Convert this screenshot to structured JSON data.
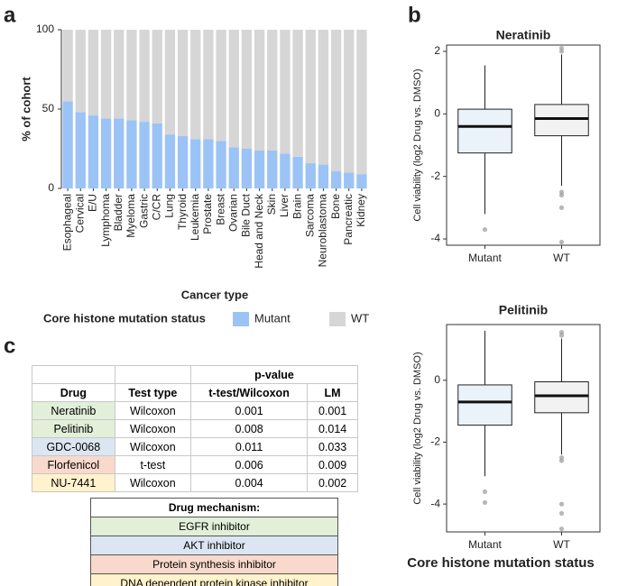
{
  "panel_labels": [
    "a",
    "b",
    "c"
  ],
  "chart_data": [
    {
      "type": "stacked-bar",
      "xlabel": "Cancer type",
      "ylabel": "% of cohort",
      "categories": [
        "Esophageal",
        "Cervical",
        "E/U",
        "Lymphoma",
        "Bladder",
        "Myeloma",
        "Gastric",
        "C/CR",
        "Lung",
        "Thyroid",
        "Leukemia",
        "Prostate",
        "Breast",
        "Ovarian",
        "Bile Duct",
        "Head and Neck",
        "Skin",
        "Liver",
        "Brain",
        "Sarcoma",
        "Neuroblastoma",
        "Bone",
        "Pancreatic",
        "Kidney"
      ],
      "series": [
        {
          "name": "Mutant",
          "color": "#9cc3f5",
          "values": [
            55,
            48,
            46,
            44,
            44,
            43,
            42,
            41,
            34,
            33,
            31,
            31,
            30,
            26,
            25,
            24,
            24,
            22,
            20,
            16,
            15,
            11,
            10,
            9
          ]
        },
        {
          "name": "WT",
          "color": "#d6d6d6",
          "values": [
            45,
            52,
            54,
            56,
            56,
            57,
            58,
            59,
            66,
            67,
            69,
            69,
            70,
            74,
            75,
            76,
            76,
            78,
            80,
            84,
            85,
            89,
            90,
            91
          ]
        }
      ],
      "legend_title": "Core histone mutation status",
      "ylim": [
        0,
        100
      ],
      "yticks": [
        0,
        50,
        100
      ]
    },
    {
      "type": "box",
      "title": "Neratinib",
      "ylabel": "Cell viability (log2 Drug vs. DMSO)",
      "categories": [
        "Mutant",
        "WT"
      ],
      "colors": [
        "#eaf3fa",
        "#f2f2f2"
      ],
      "boxes": [
        {
          "min": -3.2,
          "q1": -1.25,
          "median": -0.4,
          "q3": 0.15,
          "max": 1.55,
          "outliers": [
            -3.7
          ]
        },
        {
          "min": -2.3,
          "q1": -0.7,
          "median": -0.15,
          "q3": 0.3,
          "max": 1.9,
          "outliers": [
            2.1,
            2.0,
            -2.5,
            -2.6,
            -3.0,
            -4.1
          ]
        }
      ],
      "ylim": [
        -4.2,
        2.2
      ],
      "yticks": [
        -4,
        -2,
        0,
        2
      ]
    },
    {
      "type": "box",
      "title": "Pelitinib",
      "ylabel": "Cell viability (log2 Drug vs. DMSO)",
      "xlabel": "Core histone mutation status",
      "categories": [
        "Mutant",
        "WT"
      ],
      "colors": [
        "#eaf3fa",
        "#f2f2f2"
      ],
      "boxes": [
        {
          "min": -3.1,
          "q1": -1.45,
          "median": -0.7,
          "q3": -0.15,
          "max": 1.6,
          "outliers": [
            -3.6,
            -3.95
          ]
        },
        {
          "min": -2.4,
          "q1": -1.05,
          "median": -0.5,
          "q3": -0.05,
          "max": 1.35,
          "outliers": [
            1.55,
            1.45,
            -2.5,
            -2.6,
            -4.0,
            -4.3,
            -4.8
          ]
        }
      ],
      "ylim": [
        -4.9,
        1.8
      ],
      "yticks": [
        -4,
        -2,
        0
      ]
    }
  ],
  "table": {
    "group": "p-value",
    "columns": [
      "Drug",
      "Test type",
      "t-test/Wilcoxon",
      "LM"
    ],
    "rows": [
      {
        "cells": [
          "Neratinib",
          "Wilcoxon",
          "0.001",
          "0.001"
        ],
        "color": "#e2efd9"
      },
      {
        "cells": [
          "Pelitinib",
          "Wilcoxon",
          "0.008",
          "0.014"
        ],
        "color": "#e2efd9"
      },
      {
        "cells": [
          "GDC-0068",
          "Wilcoxon",
          "0.011",
          "0.033"
        ],
        "color": "#dce6f2"
      },
      {
        "cells": [
          "Florfenicol",
          "t-test",
          "0.006",
          "0.009"
        ],
        "color": "#f8d9cc"
      },
      {
        "cells": [
          "NU-7441",
          "Wilcoxon",
          "0.004",
          "0.002"
        ],
        "color": "#fff2cc"
      }
    ]
  },
  "mechanism": {
    "title": "Drug mechanism:",
    "items": [
      {
        "label": "EGFR inhibitor",
        "color": "#e2efd9"
      },
      {
        "label": "AKT inhibitor",
        "color": "#dce6f2"
      },
      {
        "label": "Protein synthesis inhibitor",
        "color": "#f8d9cc"
      },
      {
        "label": "DNA dependent protein kinase inhibitor",
        "color": "#fff2cc"
      }
    ]
  }
}
